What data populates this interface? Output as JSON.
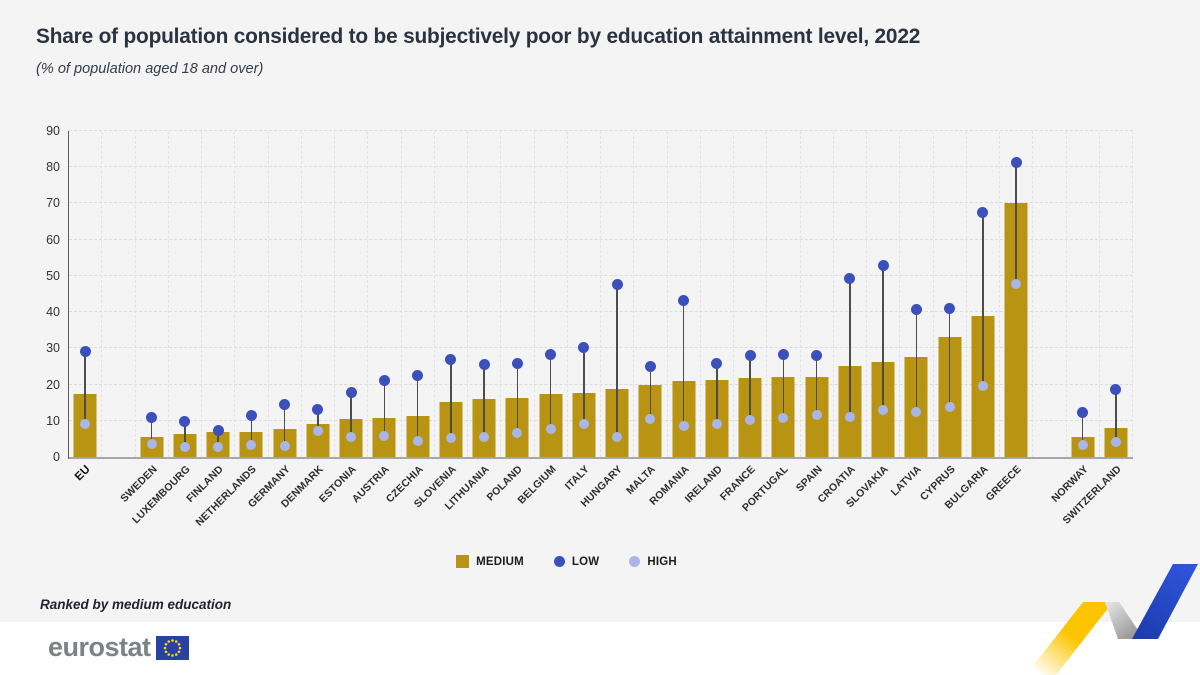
{
  "header": {
    "title": "Share of population considered to be subjectively poor by education attainment level, 2022",
    "subtitle": "(% of population aged 18 and over)"
  },
  "legend": {
    "items": [
      {
        "label": "MEDIUM",
        "marker": "square",
        "color": "#b99412"
      },
      {
        "label": "LOW",
        "marker": "dot",
        "color": "#3b50ba"
      },
      {
        "label": "HIGH",
        "marker": "dot",
        "color": "#a9b6ea"
      }
    ]
  },
  "footer": {
    "note": "Ranked by medium education",
    "brand": "eurostat"
  },
  "colors": {
    "bar_medium": "#b99412",
    "dot_low": "#3b50ba",
    "dot_high": "#a9b6ea",
    "stem": "#4d4d4d"
  },
  "chart_data": {
    "type": "bar",
    "title": "Share of population considered to be subjectively poor by education attainment level, 2022",
    "subtitle": "(% of population aged 18 and over)",
    "ylabel": "% of population aged 18 and over",
    "ylim": [
      0,
      90
    ],
    "ytick_step": 10,
    "grid": true,
    "legend_position": "bottom",
    "note": "Ranked by medium education",
    "series_meaning": {
      "bar": "MEDIUM education",
      "dark_dot": "LOW education",
      "light_dot": "HIGH education"
    },
    "categories": [
      {
        "label": "EU",
        "medium": 17.5,
        "low": 29.0,
        "high": 9.0,
        "bold": true
      },
      {
        "label": "SWEDEN",
        "medium": 5.4,
        "low": 11.0,
        "high": 3.5,
        "gap_before": true
      },
      {
        "label": "LUXEMBOURG",
        "medium": 6.3,
        "low": 9.7,
        "high": 2.7
      },
      {
        "label": "FINLAND",
        "medium": 6.9,
        "low": 7.2,
        "high": 2.7
      },
      {
        "label": "NETHERLANDS",
        "medium": 7.0,
        "low": 11.5,
        "high": 3.2
      },
      {
        "label": "GERMANY",
        "medium": 7.6,
        "low": 14.5,
        "high": 3.0
      },
      {
        "label": "DENMARK",
        "medium": 9.0,
        "low": 13.0,
        "high": 7.1
      },
      {
        "label": "ESTONIA",
        "medium": 10.4,
        "low": 17.8,
        "high": 5.6
      },
      {
        "label": "AUSTRIA",
        "medium": 10.7,
        "low": 21.0,
        "high": 5.8
      },
      {
        "label": "CZECHIA",
        "medium": 11.2,
        "low": 22.6,
        "high": 4.5
      },
      {
        "label": "SLOVENIA",
        "medium": 15.3,
        "low": 26.8,
        "high": 5.3
      },
      {
        "label": "LITHUANIA",
        "medium": 16.0,
        "low": 25.6,
        "high": 5.4
      },
      {
        "label": "POLAND",
        "medium": 16.3,
        "low": 25.7,
        "high": 6.7
      },
      {
        "label": "BELGIUM",
        "medium": 17.3,
        "low": 28.3,
        "high": 7.8
      },
      {
        "label": "ITALY",
        "medium": 17.6,
        "low": 30.2,
        "high": 9.1
      },
      {
        "label": "HUNGARY",
        "medium": 18.9,
        "low": 47.5,
        "high": 5.5
      },
      {
        "label": "MALTA",
        "medium": 19.9,
        "low": 25.1,
        "high": 10.4
      },
      {
        "label": "ROMANIA",
        "medium": 21.0,
        "low": 43.1,
        "high": 8.6
      },
      {
        "label": "IRELAND",
        "medium": 21.2,
        "low": 25.7,
        "high": 9.0
      },
      {
        "label": "FRANCE",
        "medium": 21.9,
        "low": 28.0,
        "high": 10.3
      },
      {
        "label": "PORTUGAL",
        "medium": 22.0,
        "low": 28.3,
        "high": 10.7
      },
      {
        "label": "SPAIN",
        "medium": 22.1,
        "low": 27.9,
        "high": 11.6
      },
      {
        "label": "CROATIA",
        "medium": 25.0,
        "low": 49.4,
        "high": 11.0
      },
      {
        "label": "SLOVAKIA",
        "medium": 26.3,
        "low": 53.0,
        "high": 13.0
      },
      {
        "label": "LATVIA",
        "medium": 27.6,
        "low": 40.7,
        "high": 12.4
      },
      {
        "label": "CYPRUS",
        "medium": 33.0,
        "low": 41.0,
        "high": 13.9
      },
      {
        "label": "BULGARIA",
        "medium": 38.8,
        "low": 67.6,
        "high": 19.5
      },
      {
        "label": "GREECE",
        "medium": 70.0,
        "low": 81.4,
        "high": 47.7
      },
      {
        "label": "NORWAY",
        "medium": 5.5,
        "low": 12.3,
        "high": 3.3,
        "gap_before": true
      },
      {
        "label": "SWITZERLAND",
        "medium": 8.1,
        "low": 18.6,
        "high": 4.2
      }
    ]
  }
}
